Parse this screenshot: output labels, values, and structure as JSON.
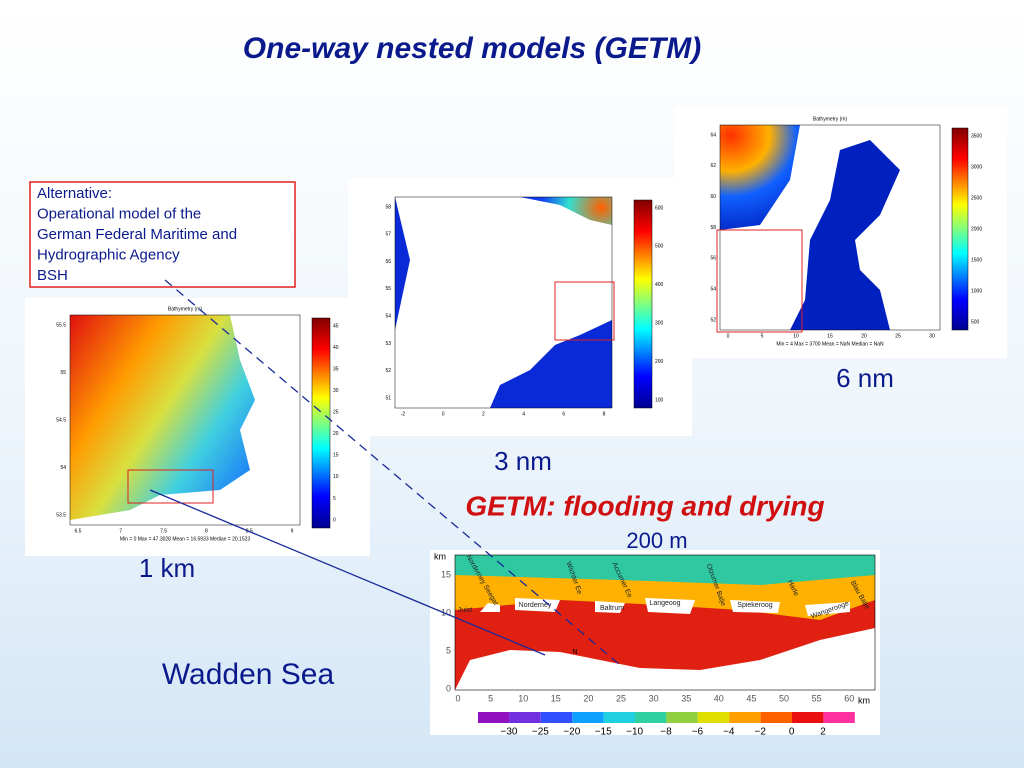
{
  "title": "One-way nested models (GETM)",
  "note": {
    "lines": [
      "Alternative:",
      "Operational model of the",
      "German Federal Maritime and",
      "Hydrographic Agency",
      "BSH"
    ]
  },
  "maps": [
    {
      "title": "Bathymetry (m)",
      "yticks": [
        "64",
        "62",
        "60",
        "58",
        "56",
        "54",
        "52"
      ],
      "xticks": [
        "0",
        "5",
        "10",
        "15",
        "20",
        "25",
        "30"
      ],
      "cbar_ticks": [
        "3500",
        "3000",
        "2500",
        "2000",
        "1500",
        "1000",
        "500"
      ],
      "stats": "Min = 4   Max = 3700   Mean = NaN   Median = NaN",
      "label": "6 nm"
    },
    {
      "yticks": [
        "58",
        "57",
        "56",
        "55",
        "54",
        "53",
        "52",
        "51"
      ],
      "xticks": [
        "-2",
        "0",
        "2",
        "4",
        "6",
        "8"
      ],
      "cbar_ticks": [
        "600",
        "500",
        "400",
        "300",
        "200",
        "100"
      ],
      "label": "3 nm"
    },
    {
      "title": "Bathymetry (m)",
      "yticks": [
        "55.5",
        "55",
        "54.5",
        "54",
        "53.5"
      ],
      "xticks": [
        "6.5",
        "7",
        "7.5",
        "8",
        "8.5",
        "9"
      ],
      "cbar_ticks": [
        "45",
        "40",
        "35",
        "30",
        "25",
        "20",
        "15",
        "10",
        "5",
        "0"
      ],
      "stats": "Min = 0   Max = 47.3028   Mean = 16.5933   Median = 20.1523",
      "label": "1 km"
    }
  ],
  "wadden": {
    "heading": "GETM: flooding and drying",
    "resolution": "200 m",
    "caption": "Wadden Sea",
    "y_unit": "km",
    "x_unit": "km",
    "yticks": [
      "15",
      "10",
      "5",
      "0"
    ],
    "xticks": [
      "0",
      "5",
      "10",
      "15",
      "20",
      "25",
      "30",
      "35",
      "40",
      "45",
      "50",
      "55",
      "60"
    ],
    "places": [
      "Norderney Seegat",
      "Juist",
      "Norderney",
      "Baltrum",
      "Wichter Ee",
      "Accumer Ee",
      "Langeoog",
      "Otzumer Balje",
      "Spiekeroog",
      "Harle",
      "Wangerooge",
      "Blau Balje",
      "N"
    ],
    "cbar_ticks": [
      "−30",
      "−25",
      "−20",
      "−15",
      "−10",
      "−8",
      "−6",
      "−4",
      "−2",
      "0",
      "2"
    ]
  }
}
